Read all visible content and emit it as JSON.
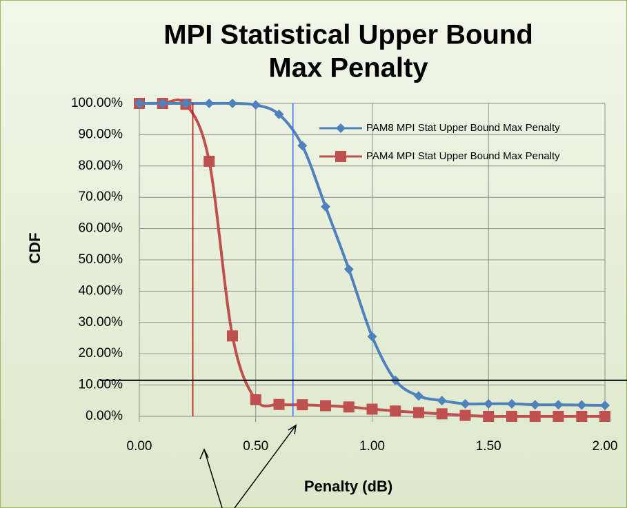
{
  "chart_data": {
    "type": "line",
    "title": [
      "MPI Statistical Upper Bound",
      "Max Penalty"
    ],
    "xlabel": "Penalty (dB)",
    "ylabel": "CDF",
    "x": [
      0,
      0.1,
      0.2,
      0.3,
      0.4,
      0.5,
      0.6,
      0.7,
      0.8,
      0.9,
      1.0,
      1.1,
      1.2,
      1.3,
      1.4,
      1.5,
      1.6,
      1.7,
      1.8,
      1.9,
      2.0
    ],
    "series": [
      {
        "name": "PAM8 MPI Stat Upper Bound Max Penalty",
        "color": "#4f81bd",
        "marker": "diamond",
        "values": [
          100,
          100,
          100,
          100,
          100,
          99.5,
          96.5,
          86.5,
          67,
          47,
          25.5,
          11.5,
          6.5,
          5,
          4,
          4,
          4,
          3.7,
          3.7,
          3.6,
          3.5
        ]
      },
      {
        "name": "PAM4 MPI Stat Upper Bound Max Penalty",
        "color": "#c0504d",
        "marker": "square",
        "values": [
          100,
          100,
          99.7,
          81.5,
          25.7,
          5.3,
          3.8,
          3.7,
          3.4,
          3,
          2.3,
          1.7,
          1.2,
          0.8,
          0.3,
          0,
          0,
          0,
          0,
          0,
          0
        ]
      }
    ],
    "xlim": [
      0,
      2
    ],
    "xticks": [
      {
        "value": 0,
        "label": "0.00"
      },
      {
        "value": 0.5,
        "label": "0.50"
      },
      {
        "value": 1,
        "label": "1.00"
      },
      {
        "value": 1.5,
        "label": "1.50"
      },
      {
        "value": 2,
        "label": "2.00"
      }
    ],
    "ylim": [
      0,
      100
    ],
    "yticks": [
      {
        "value": 0,
        "label": "0.00%"
      },
      {
        "value": 10,
        "label": "10.00%"
      },
      {
        "value": 20,
        "label": "20.00%"
      },
      {
        "value": 30,
        "label": "30.00%"
      },
      {
        "value": 40,
        "label": "40.00%"
      },
      {
        "value": 50,
        "label": "50.00%"
      },
      {
        "value": 60,
        "label": "60.00%"
      },
      {
        "value": 70,
        "label": "70.00%"
      },
      {
        "value": 80,
        "label": "80.00%"
      },
      {
        "value": 90,
        "label": "90.00%"
      },
      {
        "value": 100,
        "label": "100.00%"
      }
    ],
    "grid": true,
    "legend": "upper right",
    "vlines": [
      {
        "x": 0.23,
        "color": "#c00000"
      },
      {
        "x": 0.66,
        "color": "#3366ff"
      }
    ],
    "hlines": [
      {
        "y": 11.5,
        "color": "#000000"
      }
    ]
  }
}
